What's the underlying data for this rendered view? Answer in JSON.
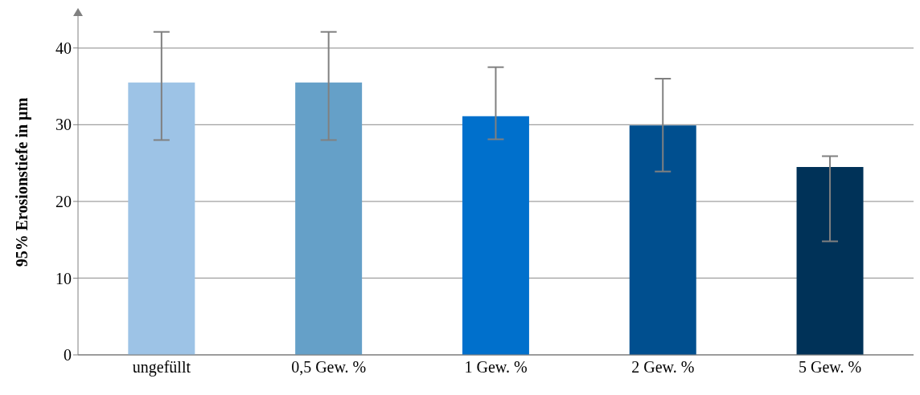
{
  "chart_data": {
    "type": "bar",
    "ylabel": "95% Erosionstiefe  in µm",
    "categories": [
      "ungefüllt",
      "0,5 Gew. %",
      "1 Gew. %",
      "2 Gew. %",
      "5 Gew. %"
    ],
    "values": [
      35.5,
      35.5,
      31.1,
      29.9,
      24.5
    ],
    "colors": [
      "#9dc3e6",
      "#65a0c8",
      "#0070cc",
      "#004f8f",
      "#003258"
    ],
    "errors": [
      [
        28.0,
        42.1
      ],
      [
        28.0,
        42.1
      ],
      [
        28.1,
        37.5
      ],
      [
        23.9,
        36.0
      ],
      [
        14.8,
        25.9
      ]
    ],
    "ylim": [
      0,
      45
    ],
    "yticks": [
      0,
      10,
      20,
      30,
      40
    ],
    "grid": "y"
  }
}
